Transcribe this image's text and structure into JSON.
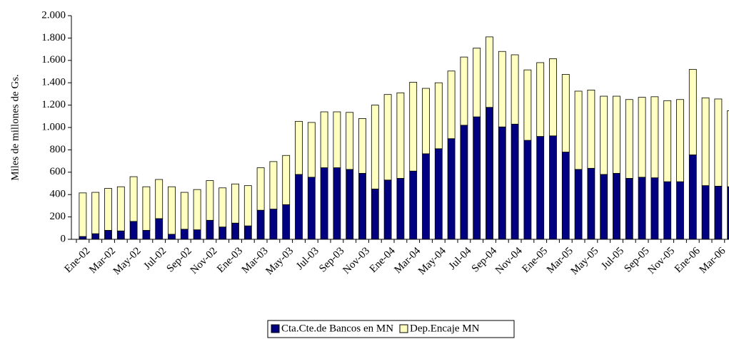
{
  "chart_data": {
    "type": "stacked_bar",
    "y_label": "Miles de millones de Gs.",
    "categories": [
      "Ene-02",
      null,
      "Mar-02",
      null,
      "May-02",
      null,
      "Jul-02",
      null,
      "Sep-02",
      null,
      "Nov-02",
      null,
      "Ene-03",
      null,
      "Mar-03",
      null,
      "May-03",
      null,
      "Jul-03",
      null,
      "Sep-03",
      null,
      "Nov-03",
      null,
      "Ene-04",
      null,
      "Mar-04",
      null,
      "May-04",
      null,
      "Jul-04",
      null,
      "Sep-04",
      null,
      "Nov-04",
      null,
      "Ene-05",
      null,
      "Mar-05",
      null,
      "May-05",
      null,
      "Jul-05",
      null,
      "Sep-05",
      null,
      "Nov-05",
      null,
      "Ene-06",
      null,
      "Mar-06",
      null
    ],
    "series": [
      {
        "name": "Cta.Cte.de Bancos en MN",
        "color": "#000080",
        "values": [
          25,
          50,
          80,
          75,
          160,
          80,
          185,
          45,
          90,
          85,
          170,
          110,
          145,
          120,
          260,
          270,
          310,
          580,
          555,
          640,
          640,
          625,
          590,
          450,
          530,
          545,
          610,
          765,
          810,
          900,
          1020,
          1095,
          1180,
          1005,
          1030,
          885,
          920,
          925,
          780,
          625,
          635,
          580,
          590,
          545,
          555,
          550,
          515,
          515,
          755,
          480,
          475,
          470
        ]
      },
      {
        "name": "Dep.Encaje MN",
        "color": "#ffffc0",
        "values": [
          390,
          370,
          375,
          395,
          400,
          390,
          350,
          425,
          330,
          360,
          355,
          350,
          350,
          360,
          380,
          425,
          440,
          475,
          490,
          500,
          500,
          510,
          490,
          750,
          765,
          765,
          795,
          585,
          590,
          605,
          610,
          615,
          630,
          675,
          620,
          630,
          660,
          690,
          695,
          700,
          700,
          700,
          690,
          705,
          715,
          725,
          725,
          735,
          765,
          785,
          780,
          680
        ]
      }
    ],
    "ylim": [
      0,
      2000
    ],
    "yticks": [
      {
        "value": 0,
        "label": "0"
      },
      {
        "value": 200,
        "label": "200"
      },
      {
        "value": 400,
        "label": "400"
      },
      {
        "value": 600,
        "label": "600"
      },
      {
        "value": 800,
        "label": "800"
      },
      {
        "value": 1000,
        "label": "1.000"
      },
      {
        "value": 1200,
        "label": "1.200"
      },
      {
        "value": 1400,
        "label": "1.400"
      },
      {
        "value": 1600,
        "label": "1.600"
      },
      {
        "value": 1800,
        "label": "1.800"
      },
      {
        "value": 2000,
        "label": "2.000"
      }
    ],
    "grid": false,
    "legend": "bottom"
  }
}
